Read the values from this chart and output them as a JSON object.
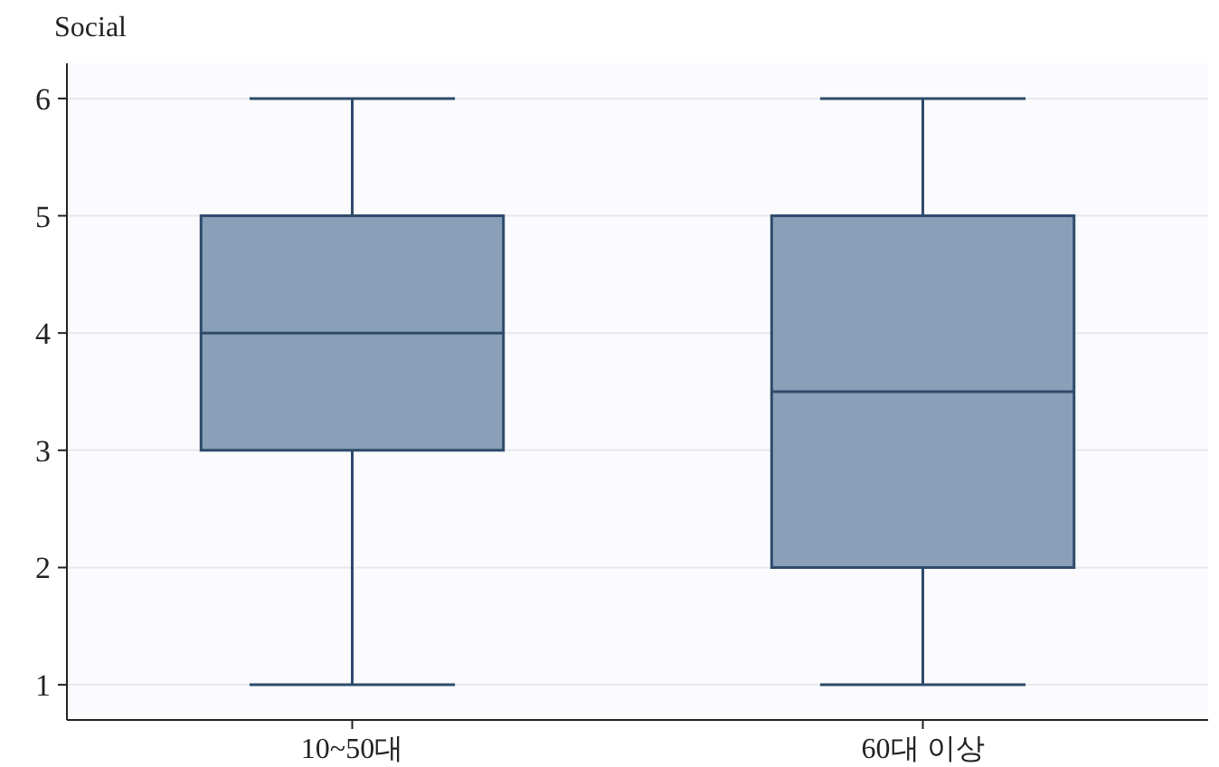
{
  "chart_data": {
    "type": "box",
    "ylabel": "Social",
    "categories": [
      "10~50대",
      "60대 이상"
    ],
    "series": [
      {
        "color": "#8a9fb8",
        "boxes": [
          {
            "low": 1,
            "q1": 3,
            "median": 4,
            "q3": 5,
            "high": 6
          },
          {
            "low": 1,
            "q1": 2,
            "median": 3.5,
            "q3": 5,
            "high": 6
          }
        ]
      }
    ],
    "ylim": [
      0.7,
      6.3
    ],
    "yticks": [
      1,
      2,
      3,
      4,
      5,
      6
    ],
    "grid": "y"
  }
}
